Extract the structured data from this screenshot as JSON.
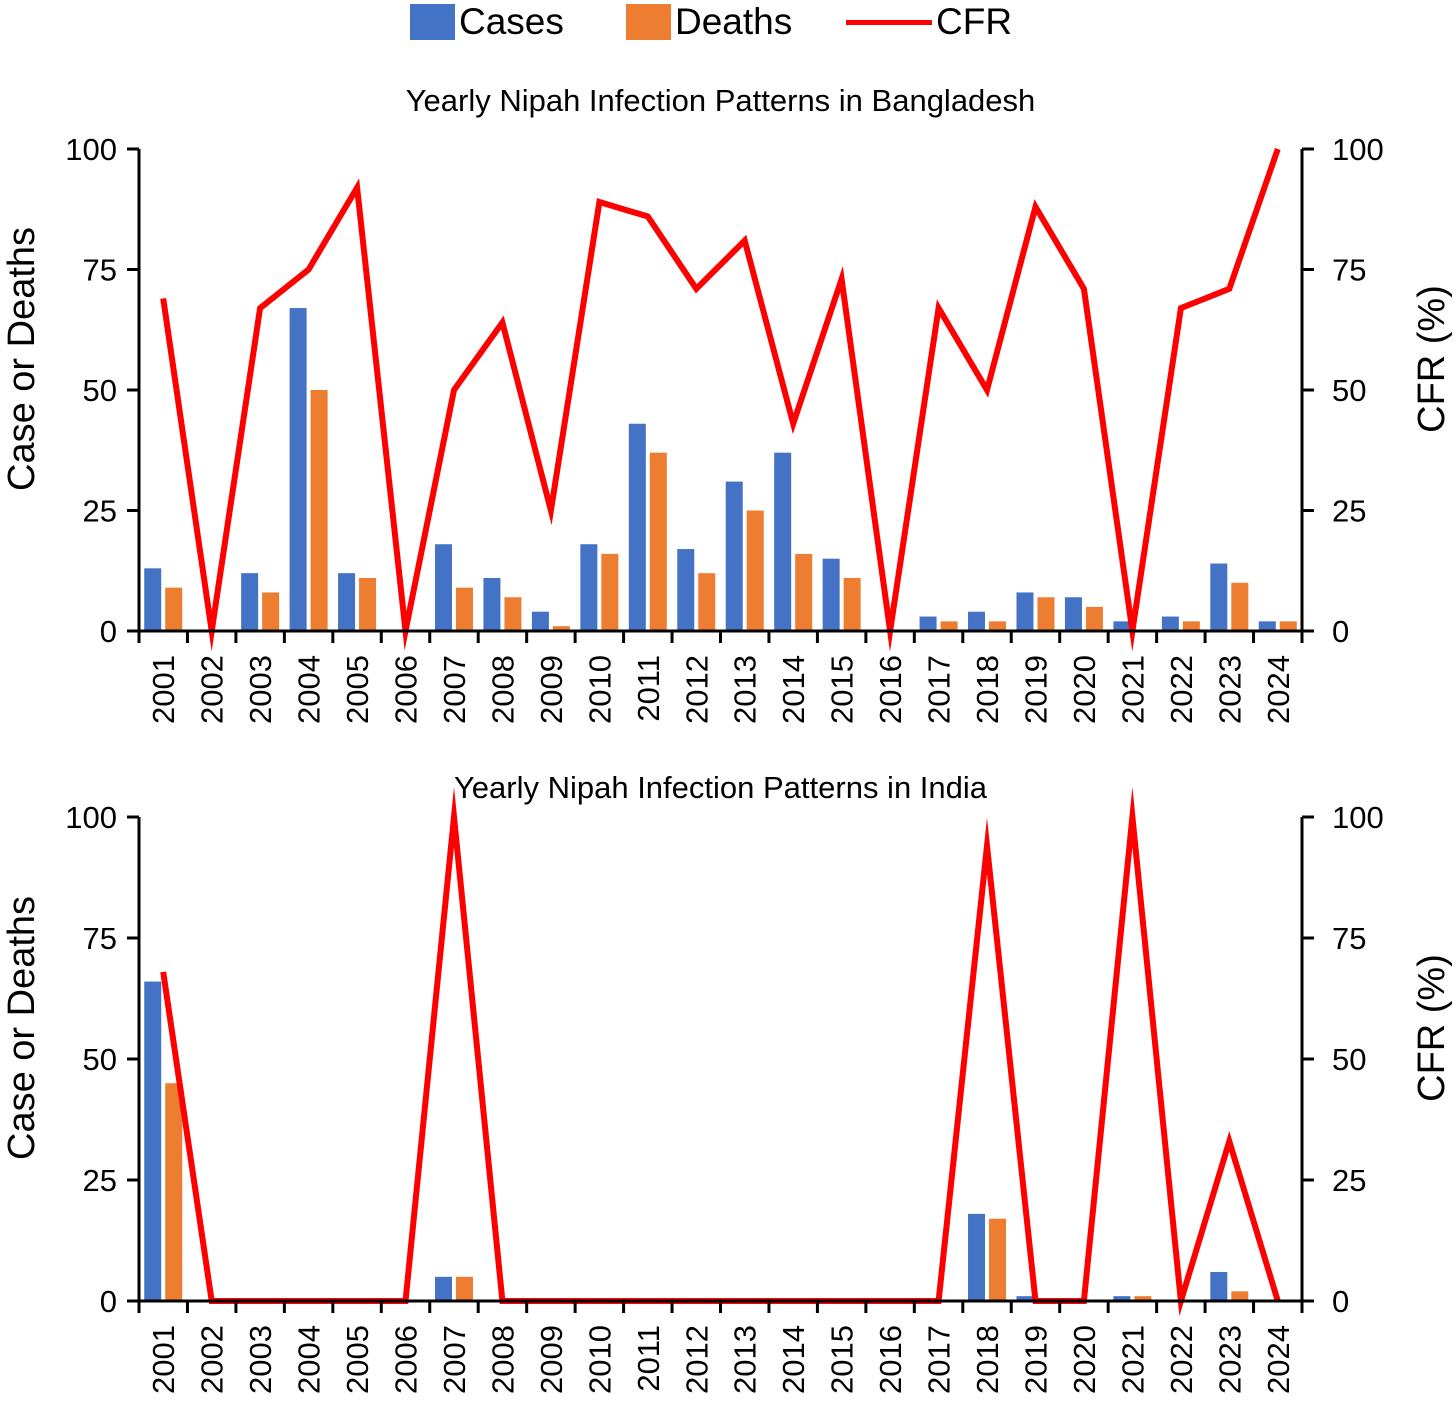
{
  "legend": {
    "cases_label": "Cases",
    "deaths_label": "Deaths",
    "cfr_label": "CFR"
  },
  "colors": {
    "cases": "#4472c4",
    "deaths": "#ed7d31",
    "cfr": "#ff0000"
  },
  "chart_data": [
    {
      "type": "bar",
      "title": "Yearly Nipah Infection Patterns in Bangladesh",
      "ylabel": "Case or Deaths",
      "y2label": "CFR (%)",
      "ylim": [
        0,
        100
      ],
      "y2lim": [
        0,
        100
      ],
      "yticks": [
        "0",
        "25",
        "50",
        "75",
        "100"
      ],
      "categories": [
        "2001",
        "2002",
        "2003",
        "2004",
        "2005",
        "2006",
        "2007",
        "2008",
        "2009",
        "2010",
        "2011",
        "2012",
        "2013",
        "2014",
        "2015",
        "2016",
        "2017",
        "2018",
        "2019",
        "2020",
        "2021",
        "2022",
        "2023",
        "2024"
      ],
      "series": [
        {
          "name": "Cases",
          "kind": "bar",
          "values": [
            13,
            0,
            12,
            67,
            12,
            0,
            18,
            11,
            4,
            18,
            43,
            17,
            31,
            37,
            15,
            0,
            3,
            4,
            8,
            7,
            2,
            3,
            14,
            2
          ]
        },
        {
          "name": "Deaths",
          "kind": "bar",
          "values": [
            9,
            0,
            8,
            50,
            11,
            0,
            9,
            7,
            1,
            16,
            37,
            12,
            25,
            16,
            11,
            0,
            2,
            2,
            7,
            5,
            0,
            2,
            10,
            2
          ]
        },
        {
          "name": "CFR",
          "kind": "line",
          "axis": "right",
          "values": [
            69,
            0,
            67,
            75,
            92,
            0,
            50,
            64,
            25,
            89,
            86,
            71,
            81,
            43,
            73,
            0,
            67,
            50,
            88,
            71,
            0,
            67,
            71,
            100
          ]
        }
      ]
    },
    {
      "type": "bar",
      "title": "Yearly Nipah Infection Patterns in India",
      "ylabel": "Case or Deaths",
      "y2label": "CFR (%)",
      "ylim": [
        0,
        100
      ],
      "y2lim": [
        0,
        100
      ],
      "yticks": [
        "0",
        "25",
        "50",
        "75",
        "100"
      ],
      "categories": [
        "2001",
        "2002",
        "2003",
        "2004",
        "2005",
        "2006",
        "2007",
        "2008",
        "2009",
        "2010",
        "2011",
        "2012",
        "2013",
        "2014",
        "2015",
        "2016",
        "2017",
        "2018",
        "2019",
        "2020",
        "2021",
        "2022",
        "2023",
        "2024"
      ],
      "series": [
        {
          "name": "Cases",
          "kind": "bar",
          "values": [
            66,
            0,
            0,
            0,
            0,
            0,
            5,
            0,
            0,
            0,
            0,
            0,
            0,
            0,
            0,
            0,
            0,
            18,
            1,
            0,
            1,
            0,
            6,
            0
          ]
        },
        {
          "name": "Deaths",
          "kind": "bar",
          "values": [
            45,
            0,
            0,
            0,
            0,
            0,
            5,
            0,
            0,
            0,
            0,
            0,
            0,
            0,
            0,
            0,
            0,
            17,
            0,
            0,
            1,
            0,
            2,
            0
          ]
        },
        {
          "name": "CFR",
          "kind": "line",
          "axis": "right",
          "values": [
            68,
            0,
            0,
            0,
            0,
            0,
            100,
            0,
            0,
            0,
            0,
            0,
            0,
            0,
            0,
            0,
            0,
            94,
            0,
            0,
            100,
            0,
            33,
            0
          ]
        }
      ]
    }
  ]
}
